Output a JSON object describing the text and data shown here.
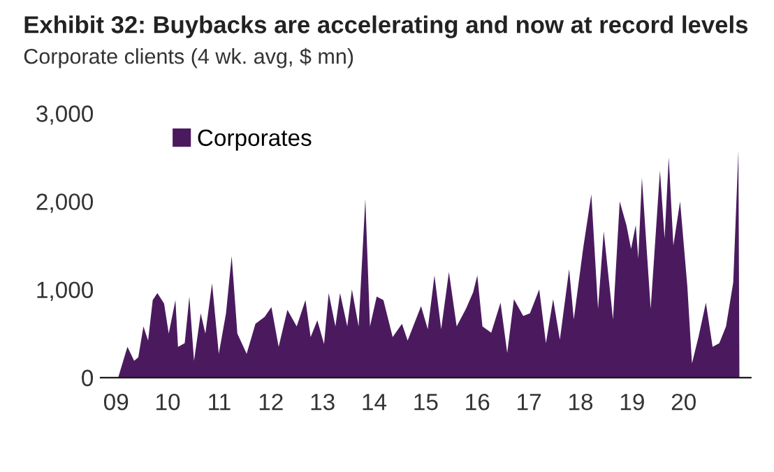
{
  "chart_data": {
    "type": "area",
    "title": "Exhibit 32: Buybacks are accelerating and now at record levels",
    "subtitle": "Corporate clients (4 wk. avg, $ mn)",
    "x": [
      2009.04,
      2009.22,
      2009.35,
      2009.43,
      2009.53,
      2009.62,
      2009.71,
      2009.8,
      2009.93,
      2010.02,
      2010.15,
      2010.2,
      2010.33,
      2010.42,
      2010.51,
      2010.64,
      2010.73,
      2010.86,
      2010.99,
      2011.13,
      2011.24,
      2011.35,
      2011.53,
      2011.7,
      2011.88,
      2012.01,
      2012.15,
      2012.32,
      2012.5,
      2012.67,
      2012.77,
      2012.9,
      2013.03,
      2013.12,
      2013.25,
      2013.34,
      2013.48,
      2013.57,
      2013.7,
      2013.83,
      2013.92,
      2014.05,
      2014.18,
      2014.36,
      2014.54,
      2014.65,
      2014.91,
      2015.04,
      2015.17,
      2015.3,
      2015.45,
      2015.6,
      2015.78,
      2015.92,
      2016.0,
      2016.1,
      2016.27,
      2016.45,
      2016.58,
      2016.71,
      2016.89,
      2017.02,
      2017.2,
      2017.33,
      2017.47,
      2017.6,
      2017.78,
      2017.87,
      2018.05,
      2018.21,
      2018.34,
      2018.45,
      2018.63,
      2018.76,
      2018.89,
      2018.98,
      2019.07,
      2019.12,
      2019.19,
      2019.36,
      2019.54,
      2019.63,
      2019.71,
      2019.8,
      2019.93,
      2020.07,
      2020.16,
      2020.29,
      2020.43,
      2020.56,
      2020.69,
      2020.82,
      2020.96,
      2021.06,
      2021.08
    ],
    "series": [
      {
        "name": "Corporates",
        "color": "#4b1a5e",
        "values": [
          0,
          350,
          190,
          230,
          580,
          420,
          880,
          960,
          840,
          500,
          880,
          350,
          390,
          920,
          190,
          730,
          500,
          1070,
          270,
          730,
          1380,
          500,
          270,
          610,
          690,
          800,
          350,
          770,
          580,
          880,
          460,
          650,
          380,
          960,
          580,
          960,
          580,
          1000,
          580,
          2030,
          580,
          920,
          880,
          460,
          610,
          420,
          810,
          550,
          1160,
          550,
          1200,
          580,
          780,
          970,
          1160,
          580,
          510,
          850,
          280,
          890,
          700,
          730,
          1000,
          390,
          890,
          430,
          1230,
          660,
          1460,
          2080,
          780,
          1660,
          660,
          2000,
          1730,
          1460,
          1730,
          1350,
          2270,
          780,
          2350,
          1580,
          2500,
          1500,
          2000,
          1040,
          160,
          470,
          850,
          350,
          390,
          580,
          1080,
          2580,
          0
        ]
      }
    ],
    "xlim": [
      2008.7,
      2021.3
    ],
    "xticks": [
      {
        "value": 2009,
        "label": "09"
      },
      {
        "value": 2010,
        "label": "10"
      },
      {
        "value": 2011,
        "label": "11"
      },
      {
        "value": 2012,
        "label": "12"
      },
      {
        "value": 2013,
        "label": "13"
      },
      {
        "value": 2014,
        "label": "14"
      },
      {
        "value": 2015,
        "label": "15"
      },
      {
        "value": 2016,
        "label": "16"
      },
      {
        "value": 2017,
        "label": "17"
      },
      {
        "value": 2018,
        "label": "18"
      },
      {
        "value": 2019,
        "label": "19"
      },
      {
        "value": 2020,
        "label": "20"
      }
    ],
    "ylim": [
      0,
      3000
    ],
    "yticks": [
      0,
      {
        "value": 1000,
        "label": "1,000"
      },
      {
        "value": 2000,
        "label": "2,000"
      },
      {
        "value": 3000,
        "label": "3,000"
      }
    ],
    "legend": "top left",
    "grid": false
  }
}
